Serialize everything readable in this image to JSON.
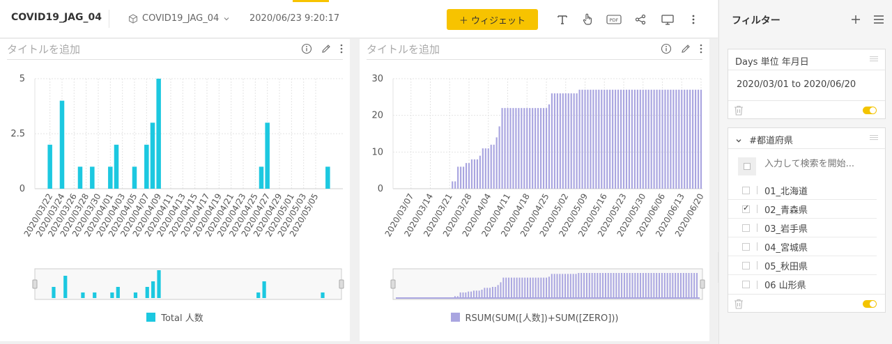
{
  "header": {
    "title": "COVID19_JAG_04",
    "datasource": "COVID19_JAG_04",
    "timestamp": "2020/06/23 9:20:17",
    "widget_button": "＋ ウィジェット",
    "icons": [
      "text-icon",
      "touch-icon",
      "pdf-icon",
      "share-icon",
      "monitor-icon",
      "more-icon"
    ]
  },
  "panels": [
    {
      "title_placeholder": "タイトルを追加",
      "legend": "Total 人数",
      "color": "#1cc8e0"
    },
    {
      "title_placeholder": "タイトルを追加",
      "legend": "RSUM(SUM([人数])+SUM([ZERO]))",
      "color": "#a9a5e0"
    }
  ],
  "chart_data": [
    {
      "type": "bar",
      "series": [
        {
          "name": "Total 人数",
          "color": "#1cc8e0",
          "values": [
            2,
            4,
            1,
            1,
            1,
            2,
            1,
            2,
            3,
            5,
            1,
            3,
            1
          ]
        }
      ],
      "x": [
        "2020/03/22",
        "2020/03/24",
        "2020/03/27",
        "2020/03/29",
        "2020/04/01",
        "2020/04/02",
        "2020/04/05",
        "2020/04/07",
        "2020/04/08",
        "2020/04/09",
        "2020/04/26",
        "2020/04/27",
        "2020/05/07"
      ],
      "tick_labels": [
        "2020/03/22",
        "2020/03/24",
        "2020/03/26",
        "2020/03/28",
        "2020/03/30",
        "2020/04/01",
        "2020/04/03",
        "2020/04/05",
        "2020/04/07",
        "2020/04/09",
        "2020/04/11",
        "2020/04/13",
        "2020/04/15",
        "2020/04/17",
        "2020/04/19",
        "2020/04/21",
        "2020/04/23",
        "2020/04/25",
        "2020/04/27",
        "2020/04/29",
        "2020/05/01",
        "2020/05/03",
        "2020/05/05"
      ],
      "y_ticks": [
        "5",
        "2.5",
        "0"
      ],
      "ylim": [
        0,
        5
      ],
      "xlim": [
        "2020/03/20",
        "2020/05/09"
      ],
      "grid": true,
      "legend_position": "bottom"
    },
    {
      "type": "bar",
      "series": [
        {
          "name": "RSUM(SUM([人数])+SUM([ZERO]))",
          "color": "#a9a5e0",
          "steps": [
            {
              "from": "2020/03/22",
              "value": 2
            },
            {
              "from": "2020/03/24",
              "value": 6
            },
            {
              "from": "2020/03/27",
              "value": 7
            },
            {
              "from": "2020/03/29",
              "value": 8
            },
            {
              "from": "2020/04/01",
              "value": 9
            },
            {
              "from": "2020/04/02",
              "value": 11
            },
            {
              "from": "2020/04/05",
              "value": 12
            },
            {
              "from": "2020/04/07",
              "value": 14
            },
            {
              "from": "2020/04/08",
              "value": 17
            },
            {
              "from": "2020/04/09",
              "value": 22
            },
            {
              "from": "2020/04/26",
              "value": 23
            },
            {
              "from": "2020/04/27",
              "value": 26
            },
            {
              "from": "2020/05/07",
              "value": 27
            }
          ]
        }
      ],
      "tick_labels": [
        "2020/03/07",
        "2020/03/14",
        "2020/03/21",
        "2020/03/28",
        "2020/04/04",
        "2020/04/11",
        "2020/04/18",
        "2020/04/25",
        "2020/05/02",
        "2020/05/09",
        "2020/05/16",
        "2020/05/23",
        "2020/05/30",
        "2020/06/06",
        "2020/06/13",
        "2020/06/20"
      ],
      "y_ticks": [
        "30",
        "20",
        "10",
        "0"
      ],
      "ylim": [
        0,
        30
      ],
      "xlim": [
        "2020/03/01",
        "2020/06/20"
      ],
      "grid": true,
      "legend_position": "bottom"
    }
  ],
  "sidebar": {
    "title": "フィルター",
    "date_filter": {
      "label": "Days 単位 年月日",
      "value": "2020/03/01 to 2020/06/20"
    },
    "pref_filter": {
      "label": "#都道府県",
      "search_placeholder": "入力して検索を開始...",
      "items": [
        {
          "label": "01_北海道",
          "checked": false
        },
        {
          "label": "02_青森県",
          "checked": true
        },
        {
          "label": "03_岩手県",
          "checked": false
        },
        {
          "label": "04_宮城県",
          "checked": false
        },
        {
          "label": "05_秋田県",
          "checked": false
        },
        {
          "label": "06 山形県",
          "checked": false
        }
      ]
    }
  }
}
